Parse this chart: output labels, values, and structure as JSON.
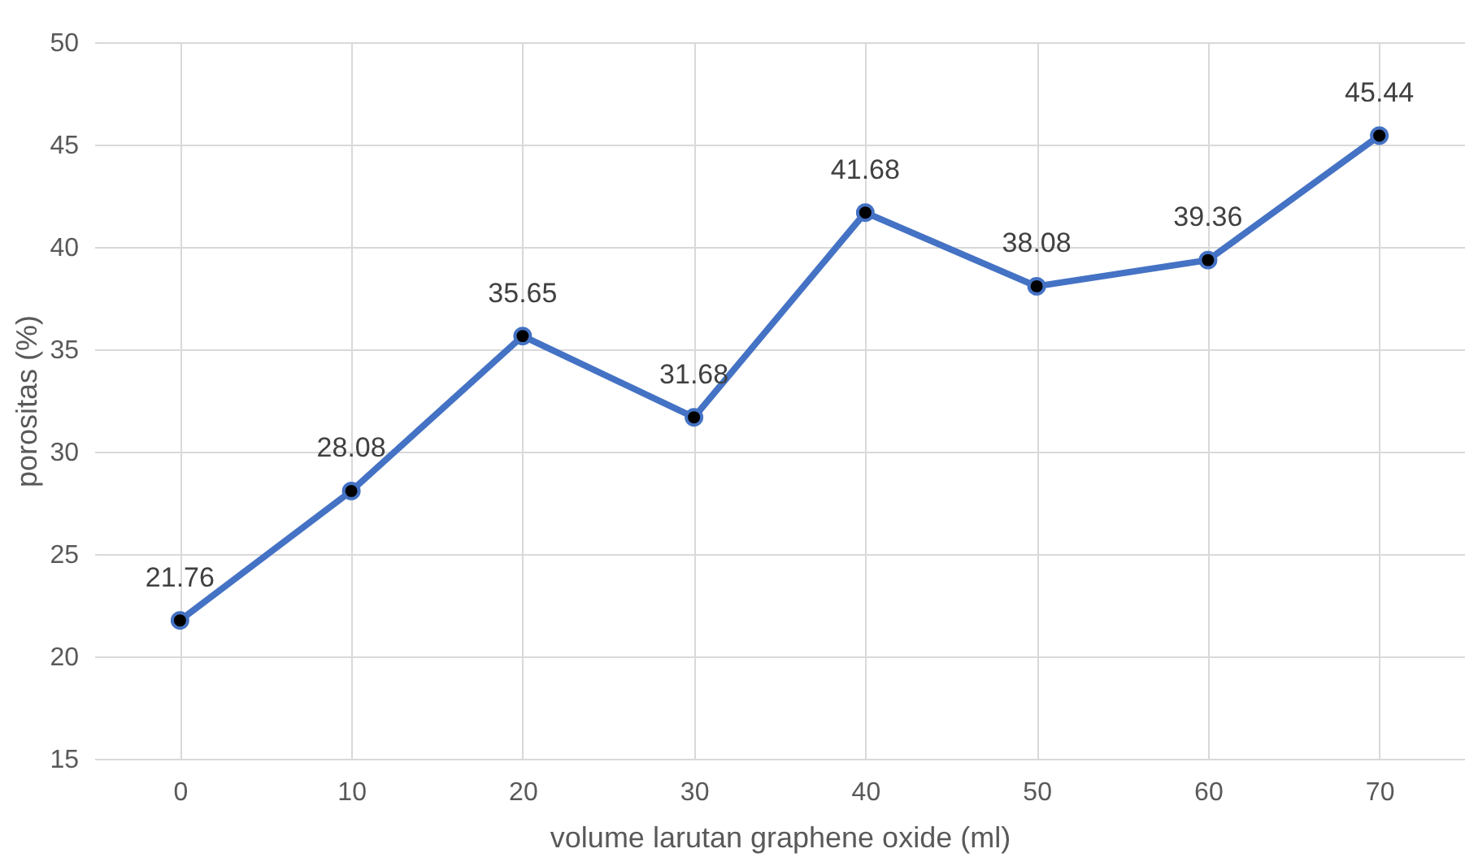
{
  "chart_data": {
    "type": "line",
    "xlabel": "volume larutan graphene oxide (ml)",
    "ylabel": "porositas (%)",
    "categories": [
      "0",
      "10",
      "20",
      "30",
      "40",
      "50",
      "60",
      "70"
    ],
    "series": [
      {
        "color": "#4472c4",
        "values": [
          21.76,
          28.08,
          35.65,
          31.68,
          41.68,
          38.08,
          39.36,
          45.44
        ]
      }
    ],
    "ylim": [
      15,
      50
    ],
    "yticks": [
      15,
      20,
      25,
      30,
      35,
      40,
      45,
      50
    ],
    "grid": true,
    "marker": "circle",
    "line_style": "solid",
    "data_labels": true
  }
}
